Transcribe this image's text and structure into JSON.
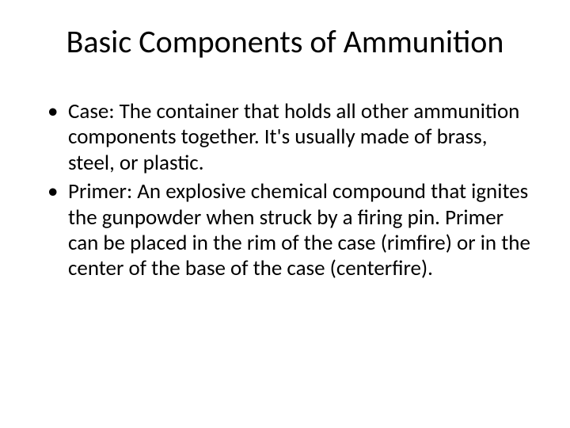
{
  "slide": {
    "title": "Basic Components of Ammunition",
    "bullets": [
      "Case: The container that holds all other ammunition components together. It's usually made of brass, steel, or plastic.",
      "Primer: An explosive chemical compound that ignites the gunpowder when struck by a firing pin. Primer can be placed in the rim of the case (rimfire) or in the center of the base of the case (centerfire)."
    ]
  },
  "style": {
    "background_color": "#ffffff",
    "text_color": "#000000",
    "title_fontsize": 40,
    "title_weight": 400,
    "body_fontsize": 27,
    "line_height": 1.2,
    "font_family": "Calibri"
  }
}
